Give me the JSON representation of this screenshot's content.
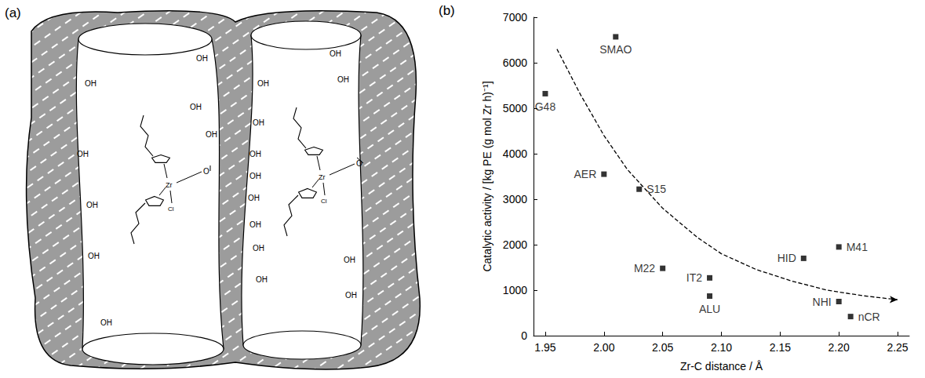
{
  "diagram": {
    "panel_label": "(a)",
    "hydroxyl_label": "OH",
    "metal_label": "Zr",
    "oxygen_label": "O",
    "chloride_label": "Cl"
  },
  "chart_data": {
    "type": "scatter",
    "panel_label": "(b)",
    "x_label": "Zr-C distance / Å",
    "y_label": "Catalytic activity / [kg PE (g mol Zr h)⁻¹]",
    "xlim": [
      1.94,
      2.26
    ],
    "xticks": [
      1.95,
      {
        "value": 2,
        "label": "2.00"
      },
      2.05,
      {
        "value": 2.1,
        "label": "2.10"
      },
      2.15,
      {
        "value": 2.2,
        "label": "2.20"
      },
      2.25
    ],
    "ylim": [
      0,
      7000
    ],
    "yticks": [
      0,
      1000,
      2000,
      3000,
      4000,
      5000,
      6000,
      7000
    ],
    "grid": false,
    "series": [
      {
        "type": "scatter",
        "marker": "square",
        "color": "#000000",
        "x": [
          1.95,
          2.01,
          2.0,
          2.03,
          2.05,
          2.09,
          2.09,
          2.17,
          2.2,
          2.2,
          2.21
        ],
        "values": [
          5320,
          6570,
          3550,
          3220,
          1480,
          1270,
          870,
          1700,
          1950,
          750,
          420
        ],
        "point_labels": [
          "G48",
          "SMAO",
          "AER",
          "S15",
          "M22",
          "IT2",
          "ALU",
          "HID",
          "M41",
          "NHI",
          "nCR"
        ]
      },
      {
        "type": "line",
        "line_style": "dashed",
        "marker": "arrow",
        "color": "#000000",
        "x": [
          1.96,
          1.98,
          2.0,
          2.02,
          2.05,
          2.08,
          2.1,
          2.13,
          2.16,
          2.19,
          2.22,
          2.25
        ],
        "values": [
          6300,
          5300,
          4400,
          3650,
          2800,
          2150,
          1800,
          1450,
          1200,
          1000,
          880,
          790
        ]
      }
    ]
  }
}
